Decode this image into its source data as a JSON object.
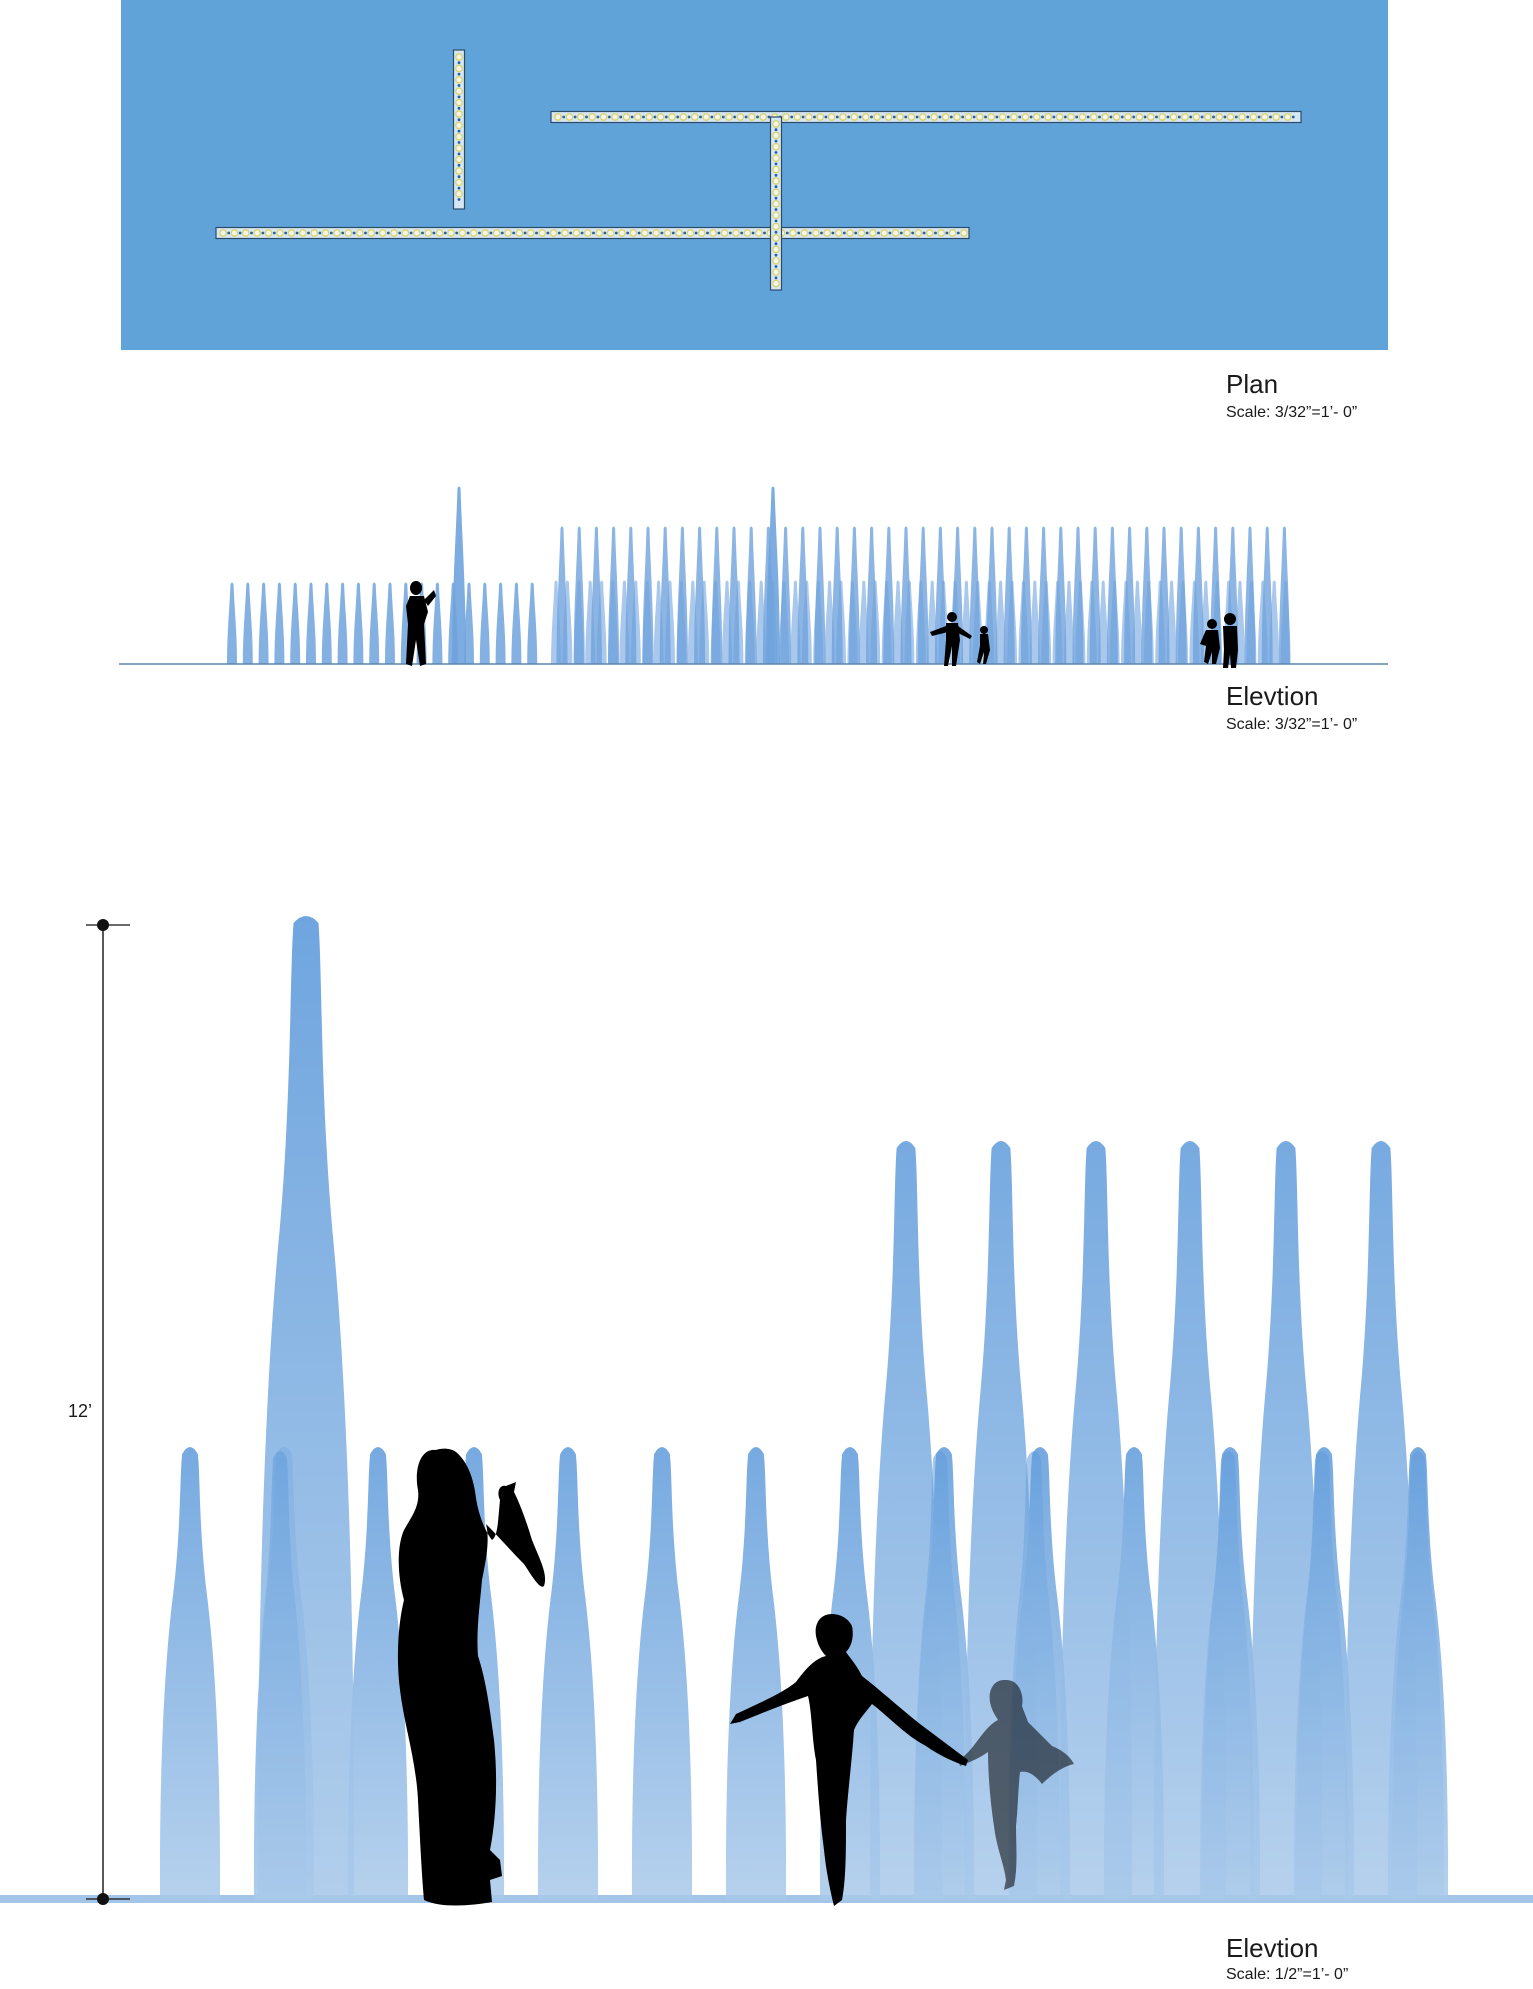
{
  "colors": {
    "plan_water": "#5fa3d9",
    "strip_fill": "#d6e6f2",
    "strip_border": "#2d4b66",
    "nozzle_ring": "#d9d36a",
    "nozzle_dot": "#2a5fa6",
    "jet": "#6fa3dd",
    "silhouette": "#000000",
    "ground": "#9cc2e6"
  },
  "plan": {
    "title": "Plan",
    "scale": "Scale: 3/32”=1’- 0”",
    "strips_count": 4
  },
  "elevation_small": {
    "title": "Elevtion",
    "scale": "Scale: 3/32”=1’- 0”"
  },
  "elevation_large": {
    "title": "Elevtion",
    "scale": "Scale: 1/2”=1’- 0”",
    "dimension_label": "12’"
  },
  "icons": {
    "people": [
      "adult-silhouette",
      "child-silhouette"
    ]
  }
}
